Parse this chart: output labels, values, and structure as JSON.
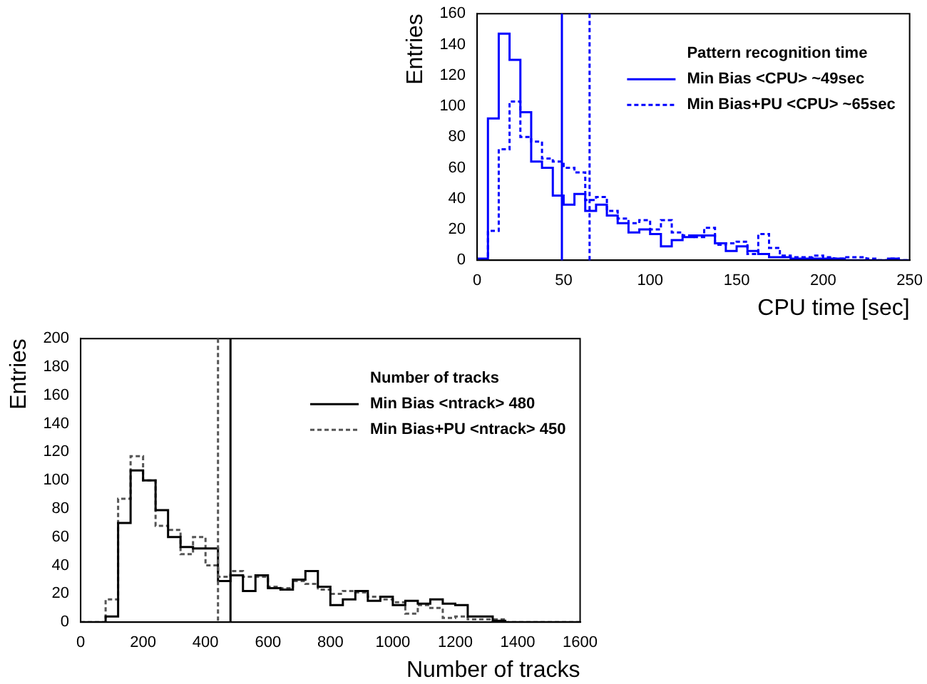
{
  "chart_data": [
    {
      "type": "histogram",
      "xlabel": "CPU time [sec]",
      "ylabel": "Entries",
      "legend_title": "Pattern recognition time",
      "legend": "top right",
      "grid": false,
      "bins": [
        0,
        6.25,
        12.5,
        18.75,
        25,
        31.25,
        37.5,
        43.75,
        50,
        56.25,
        62.5,
        68.75,
        75,
        81.25,
        87.5,
        93.75,
        100,
        106.25,
        112.5,
        118.75,
        125,
        131.25,
        137.5,
        143.75,
        150,
        156.25,
        162.5,
        168.75,
        175,
        181.25,
        187.5,
        193.75,
        200,
        206.25,
        212.5,
        218.75,
        225,
        231.25,
        237.5,
        243.75,
        250
      ],
      "series": [
        {
          "name": "Min Bias <CPU> ~49sec",
          "color": "#0000ff",
          "line_style": "solid",
          "values": [
            1,
            92,
            147,
            130,
            96,
            64,
            60,
            42,
            36,
            43,
            32,
            36,
            29,
            24,
            18,
            20,
            17,
            9,
            13,
            15,
            16,
            16,
            11,
            6,
            9,
            6,
            4,
            2,
            2,
            1,
            1,
            1,
            1,
            1,
            0,
            0,
            0,
            0,
            1,
            0
          ]
        },
        {
          "name": "Min Bias+PU <CPU> ~65sec",
          "color": "#0000ff",
          "line_style": "dotted",
          "values": [
            0,
            19,
            72,
            103,
            80,
            77,
            66,
            64,
            60,
            57,
            39,
            41,
            32,
            27,
            24,
            26,
            20,
            26,
            18,
            16,
            15,
            21,
            10,
            11,
            12,
            4,
            17,
            8,
            3,
            2,
            2,
            3,
            2,
            1,
            2,
            2,
            1,
            0,
            1,
            0
          ]
        }
      ],
      "xlim": [
        0,
        250
      ],
      "xticks": [
        0,
        50,
        100,
        150,
        200,
        250
      ],
      "ylim": [
        0,
        160
      ],
      "yticks": [
        0,
        20,
        40,
        60,
        80,
        100,
        120,
        140,
        160
      ],
      "ref_lines": [
        {
          "axis": "x",
          "value": 49,
          "color": "#0000ff",
          "line_style": "solid"
        },
        {
          "axis": "x",
          "value": 65,
          "color": "#0000ff",
          "line_style": "dotted"
        }
      ]
    },
    {
      "type": "histogram",
      "xlabel": "Number of tracks",
      "ylabel": "Entries",
      "legend_title": "Number of tracks",
      "legend": "top right",
      "grid": false,
      "bins": [
        0,
        40,
        80,
        120,
        160,
        200,
        240,
        280,
        320,
        360,
        400,
        440,
        480,
        520,
        560,
        600,
        640,
        680,
        720,
        760,
        800,
        840,
        880,
        920,
        960,
        1000,
        1040,
        1080,
        1120,
        1160,
        1200,
        1240,
        1280,
        1320,
        1360,
        1400,
        1440,
        1480,
        1520,
        1560,
        1600
      ],
      "series": [
        {
          "name": "Min Bias <ntrack> 480",
          "color": "#000000",
          "line_style": "solid",
          "values": [
            0,
            0,
            4,
            70,
            107,
            100,
            79,
            60,
            53,
            52,
            52,
            29,
            33,
            22,
            33,
            24,
            23,
            30,
            36,
            25,
            12,
            16,
            22,
            15,
            18,
            12,
            15,
            13,
            16,
            13,
            12,
            4,
            4,
            1,
            0,
            0,
            0,
            0,
            0,
            0
          ]
        },
        {
          "name": "Min Bias+PU <ntrack> 450",
          "color": "#555555",
          "line_style": "dotted",
          "values": [
            0,
            0,
            16,
            87,
            117,
            100,
            68,
            65,
            48,
            60,
            40,
            32,
            36,
            32,
            32,
            25,
            24,
            29,
            27,
            23,
            20,
            22,
            21,
            18,
            16,
            14,
            6,
            12,
            10,
            3,
            4,
            2,
            2,
            2,
            0,
            0,
            0,
            0,
            0,
            0
          ]
        }
      ],
      "xlim": [
        0,
        1600
      ],
      "xticks": [
        0,
        200,
        400,
        600,
        800,
        1000,
        1200,
        1400,
        1600
      ],
      "ylim": [
        0,
        200
      ],
      "yticks": [
        0,
        20,
        40,
        60,
        80,
        100,
        120,
        140,
        160,
        180,
        200
      ],
      "ref_lines": [
        {
          "axis": "x",
          "value": 440,
          "color": "#555555",
          "line_style": "dotted"
        },
        {
          "axis": "x",
          "value": 480,
          "color": "#000000",
          "line_style": "solid"
        }
      ]
    }
  ]
}
